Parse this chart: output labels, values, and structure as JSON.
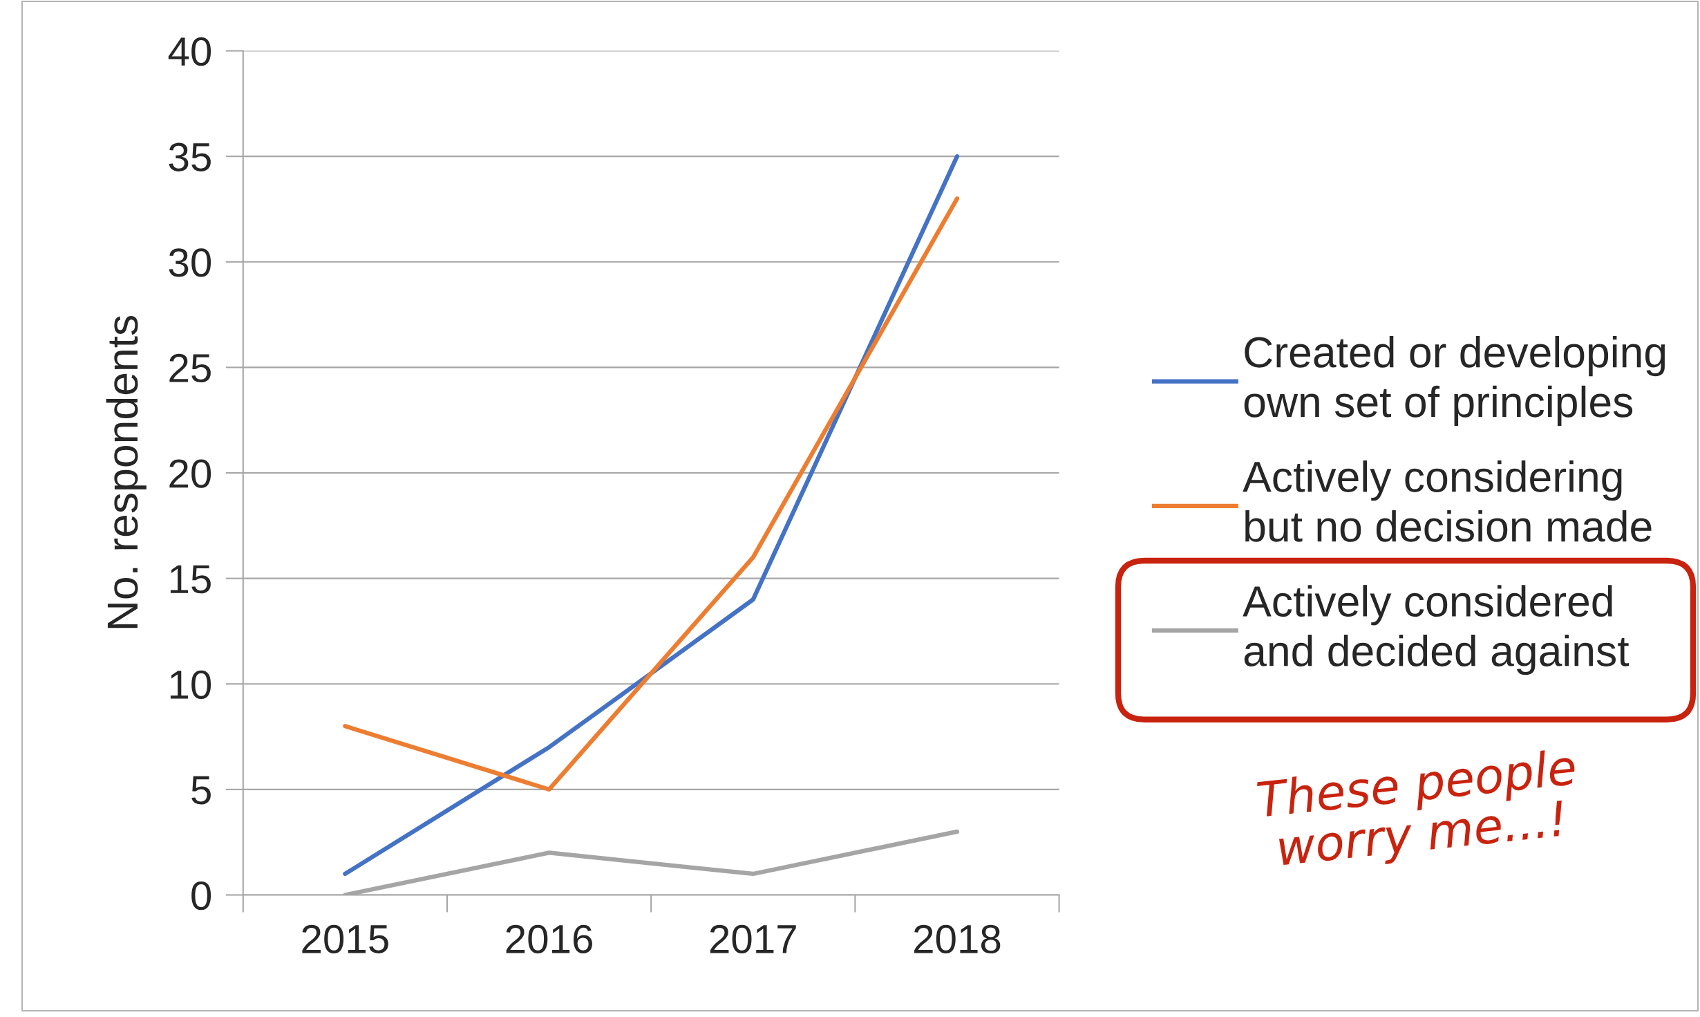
{
  "chart_data": {
    "type": "line",
    "ylabel": "No. respondents",
    "categories": [
      "2015",
      "2016",
      "2017",
      "2018"
    ],
    "series": [
      {
        "name": "Created or developing\nown set of principles",
        "color": "#4472c4",
        "values": [
          1,
          7,
          14,
          35
        ]
      },
      {
        "name": "Actively considering\nbut no decision made",
        "color": "#ed7d31",
        "values": [
          8,
          5,
          16,
          33
        ]
      },
      {
        "name": "Actively considered\nand decided against",
        "color": "#a5a5a5",
        "values": [
          0,
          2,
          1,
          3
        ]
      }
    ],
    "ylim": [
      0,
      40
    ],
    "yticks": [
      0,
      5,
      10,
      15,
      20,
      25,
      30,
      35,
      40
    ],
    "grid": "y",
    "legend": "right",
    "line_style": "solid",
    "annotations": [
      "These people\nworry me...!"
    ]
  }
}
